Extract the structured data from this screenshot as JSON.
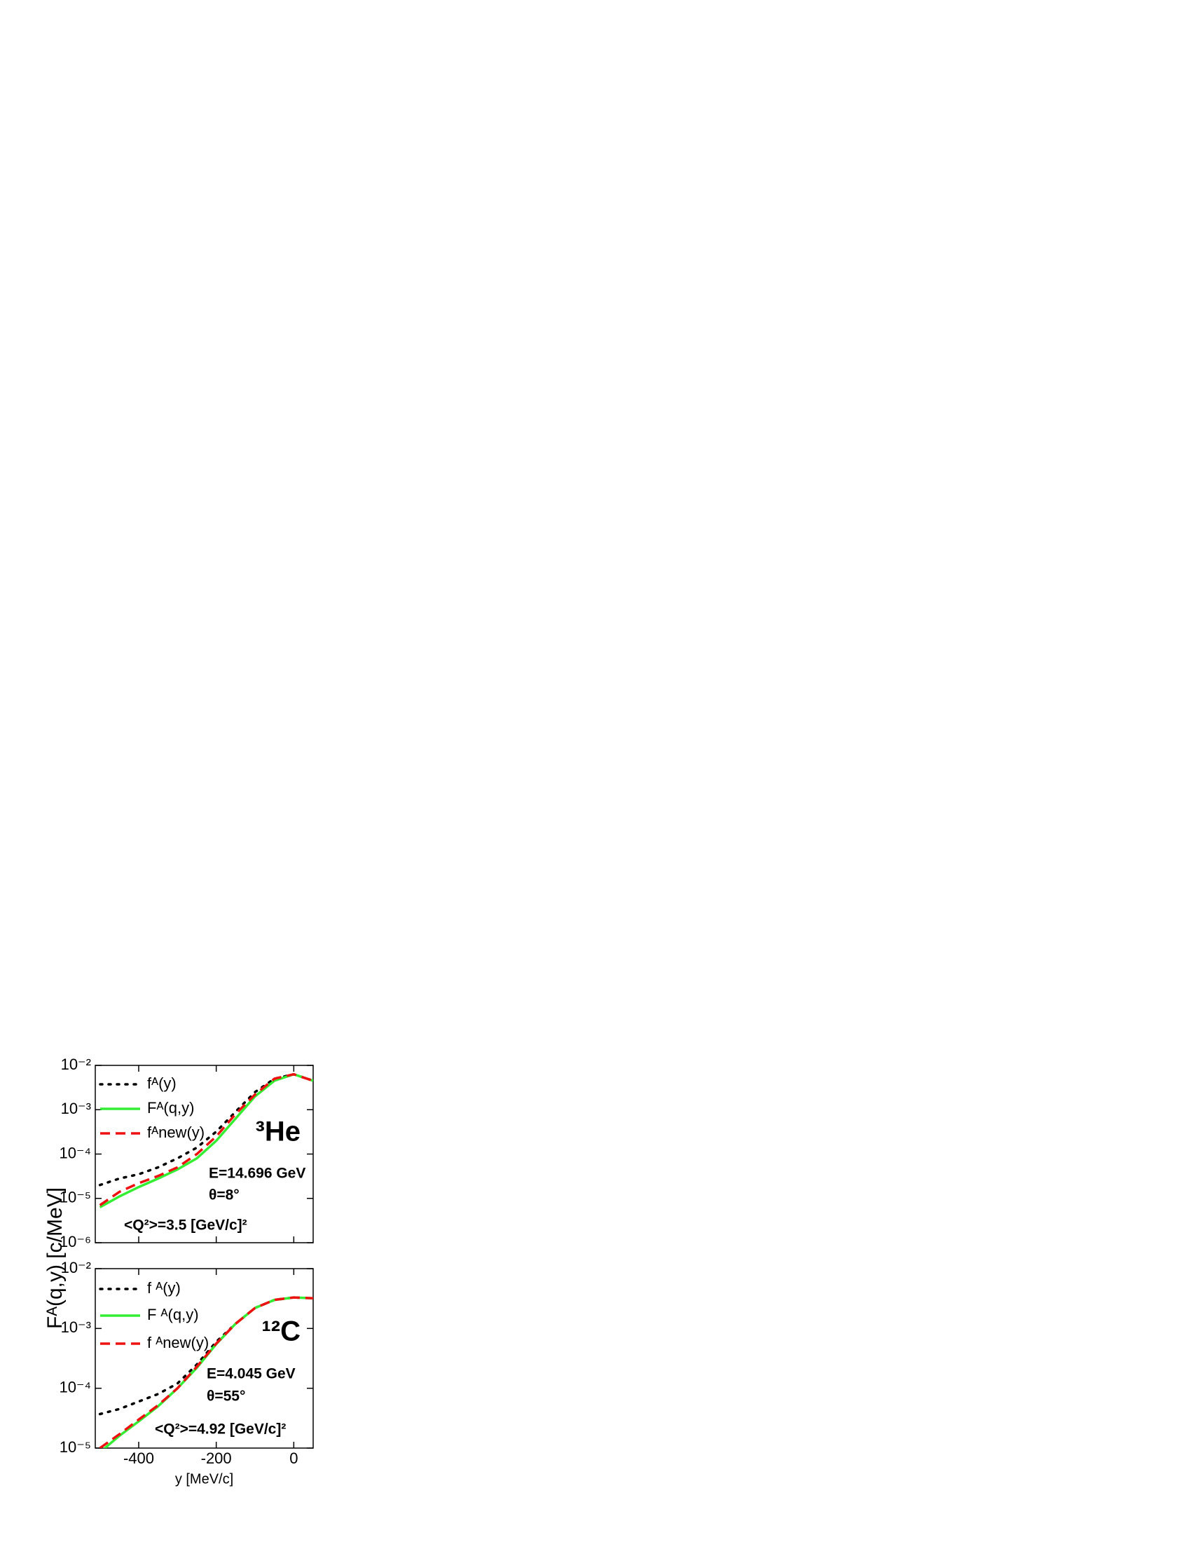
{
  "chart_data": [
    {
      "type": "line",
      "log_y": true,
      "x": [
        -500,
        -450,
        -400,
        -350,
        -300,
        -250,
        -200,
        -150,
        -100,
        -50,
        0,
        50
      ],
      "series": [
        {
          "name": "fᴬ(y)",
          "color": "#000000",
          "style": "dotted",
          "values": [
            2e-05,
            2.8e-05,
            3.5e-05,
            5e-05,
            8e-05,
            0.00014,
            0.00032,
            0.0009,
            0.0025,
            0.005,
            0.0063,
            0.0045
          ]
        },
        {
          "name": "Fᴬ(q,y)",
          "color": "#33ee33",
          "style": "solid",
          "values": [
            6.3e-06,
            1.1e-05,
            1.8e-05,
            2.8e-05,
            4.5e-05,
            8e-05,
            0.0002,
            0.00063,
            0.002,
            0.0045,
            0.0063,
            0.0045
          ]
        },
        {
          "name": "fᴬnew(y)",
          "color": "#ee1111",
          "style": "dashed",
          "values": [
            7e-06,
            1.4e-05,
            2.2e-05,
            3.2e-05,
            5e-05,
            0.0001,
            0.00025,
            0.0008,
            0.0022,
            0.005,
            0.0063,
            0.0045
          ]
        }
      ],
      "annotations": [
        "³He",
        "E=14.696 GeV",
        "θ=8°",
        "<Q²>=3.5 [GeV/c]²"
      ],
      "xlim": [
        -512,
        50
      ],
      "xticks": [
        -400,
        -200,
        0
      ],
      "ylim": [
        1e-06,
        0.01
      ],
      "yticks": [
        {
          "value": 1e-06,
          "label": "10⁻⁶"
        },
        {
          "value": 1e-05,
          "label": "10⁻⁵"
        },
        {
          "value": 0.0001,
          "label": "10⁻⁴"
        },
        {
          "value": 0.001,
          "label": "10⁻³"
        },
        {
          "value": 0.01,
          "label": "10⁻²"
        }
      ],
      "y_label": "Fᴬ(q,y) [c/MeV]"
    },
    {
      "type": "line",
      "log_y": true,
      "x": [
        -500,
        -450,
        -400,
        -350,
        -300,
        -250,
        -200,
        -150,
        -100,
        -50,
        0,
        50
      ],
      "series": [
        {
          "name": "f ᴬ(y)",
          "color": "#000000",
          "style": "dotted",
          "values": [
            3.7e-05,
            4.5e-05,
            6e-05,
            8e-05,
            0.00012,
            0.00025,
            0.0006,
            0.0012,
            0.0022,
            0.003,
            0.0033,
            0.0032
          ]
        },
        {
          "name": "F ᴬ(q,y)",
          "color": "#33ee33",
          "style": "solid",
          "values": [
            8.5e-06,
            1.6e-05,
            2.8e-05,
            5e-05,
            0.0001,
            0.00022,
            0.00055,
            0.0012,
            0.0022,
            0.003,
            0.0033,
            0.0032
          ]
        },
        {
          "name": "f ᴬnew(y)",
          "color": "#ee1111",
          "style": "dashed",
          "values": [
            1e-05,
            1.7e-05,
            3e-05,
            5.2e-05,
            0.0001,
            0.00023,
            0.00056,
            0.0012,
            0.0022,
            0.003,
            0.0033,
            0.0032
          ]
        }
      ],
      "annotations": [
        "¹²C",
        "E=4.045 GeV",
        "θ=55°",
        "<Q²>=4.92 [GeV/c]²"
      ],
      "xlim": [
        -512,
        50
      ],
      "xticks": [
        -400,
        -200,
        0
      ],
      "ylim": [
        1e-05,
        0.01
      ],
      "yticks": [
        {
          "value": 1e-05,
          "label": "10⁻⁵"
        },
        {
          "value": 0.0001,
          "label": "10⁻⁴"
        },
        {
          "value": 0.001,
          "label": "10⁻³"
        },
        {
          "value": 0.01,
          "label": "10⁻²"
        }
      ],
      "x_label": "y [MeV/c]"
    }
  ]
}
